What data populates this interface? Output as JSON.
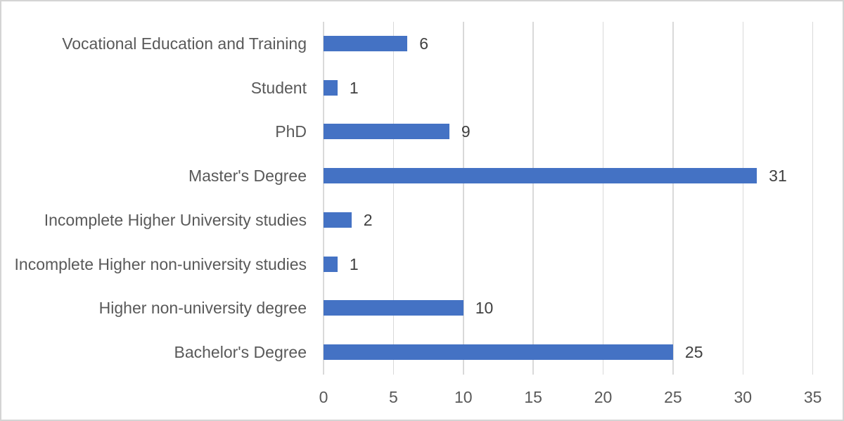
{
  "chart_data": {
    "type": "bar",
    "orientation": "horizontal",
    "title": "",
    "xlabel": "",
    "ylabel": "",
    "categories": [
      "Vocational Education and Training",
      "Student",
      "PhD",
      "Master's Degree",
      "Incomplete Higher University studies",
      "Incomplete Higher non-university studies",
      "Higher non-university degree",
      "Bachelor's Degree"
    ],
    "values": [
      6,
      1,
      9,
      31,
      2,
      1,
      10,
      25
    ],
    "data_labels": [
      "6",
      "1",
      "9",
      "31",
      "2",
      "1",
      "10",
      "25"
    ],
    "xlim": [
      0,
      35
    ],
    "xticks": [
      0,
      5,
      10,
      15,
      20,
      25,
      30,
      35
    ],
    "xtick_labels": [
      "0",
      "5",
      "10",
      "15",
      "20",
      "25",
      "30",
      "35"
    ],
    "grid": true,
    "legend_position": "none",
    "colors": {
      "bar": "#4472c4",
      "gridline": "#d9d9d9",
      "axis_text": "#595959",
      "data_label_text": "#404040",
      "background": "#ffffff",
      "frame_border": "#d4d4d4"
    }
  }
}
